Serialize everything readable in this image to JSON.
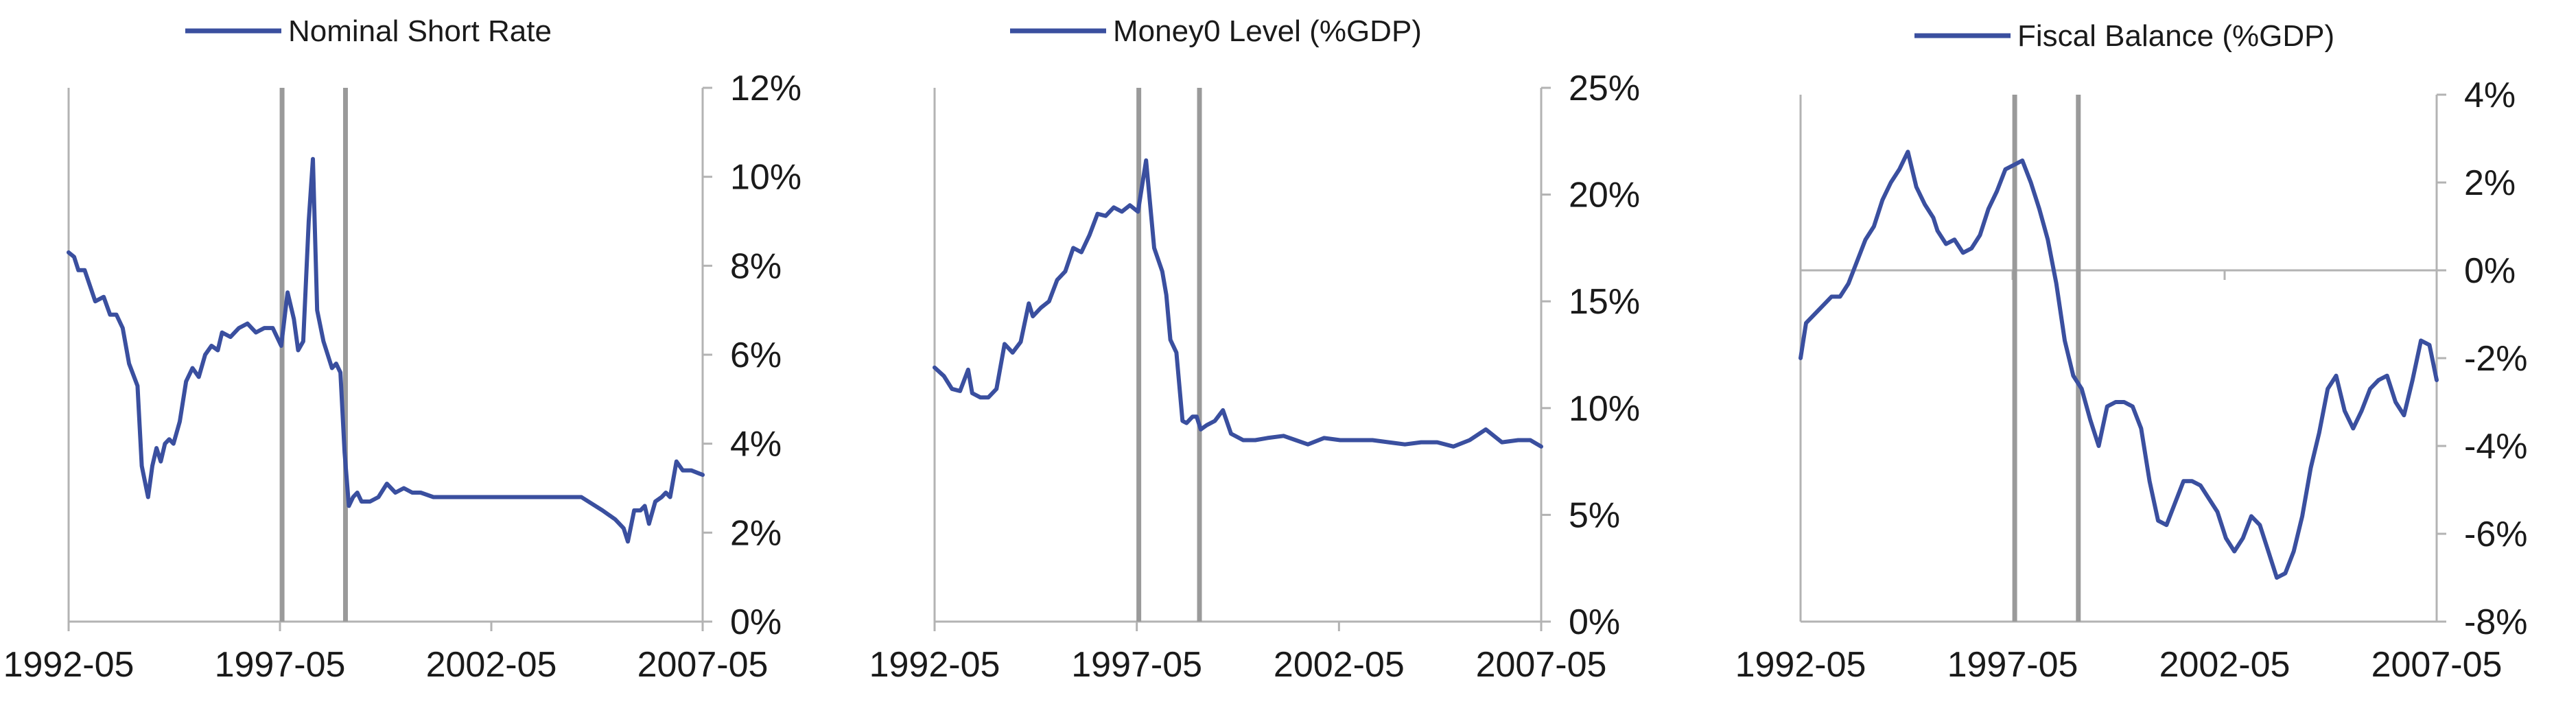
{
  "colors": {
    "series": "#3a4f9f",
    "axis": "#b3b3b3",
    "marker": "#9a9a9a",
    "text": "#1a1a1a"
  },
  "chart_data": [
    {
      "type": "line",
      "title": "",
      "legend": "Nominal Short Rate",
      "legend_placement": "top",
      "y_axis_side": "right",
      "xlim": [
        1992.37,
        2007.37
      ],
      "ylim": [
        0,
        12
      ],
      "yticks": [
        0,
        2,
        4,
        6,
        8,
        10,
        12
      ],
      "ytick_labels": [
        "0%",
        "2%",
        "4%",
        "6%",
        "8%",
        "10%",
        "12%"
      ],
      "xticks": [
        1992.37,
        1997.37,
        2002.37,
        2007.37
      ],
      "xtick_labels": [
        "1992-05",
        "1997-05",
        "2002-05",
        "2007-05"
      ],
      "grid": false,
      "vertical_markers": [
        1997.42,
        1998.92
      ],
      "series": [
        {
          "name": "Nominal Short Rate",
          "x": [
            1992.37,
            1992.5,
            1992.6,
            1992.75,
            1993.0,
            1993.2,
            1993.35,
            1993.5,
            1993.65,
            1993.8,
            1994.0,
            1994.1,
            1994.25,
            1994.35,
            1994.45,
            1994.55,
            1994.65,
            1994.75,
            1994.85,
            1995.0,
            1995.15,
            1995.3,
            1995.45,
            1995.6,
            1995.75,
            1995.9,
            1996.0,
            1996.2,
            1996.4,
            1996.6,
            1996.8,
            1997.0,
            1997.2,
            1997.4,
            1997.55,
            1997.7,
            1997.8,
            1997.92,
            1998.05,
            1998.15,
            1998.25,
            1998.4,
            1998.5,
            1998.6,
            1998.7,
            1998.8,
            1998.9,
            1999.0,
            1999.1,
            1999.2,
            1999.3,
            1999.5,
            1999.7,
            1999.9,
            2000.1,
            2000.3,
            2000.5,
            2000.7,
            2001.0,
            2001.3,
            2001.6,
            2002.0,
            2002.5,
            2003.0,
            2003.5,
            2004.0,
            2004.5,
            2005.0,
            2005.15,
            2005.3,
            2005.5,
            2005.6,
            2005.75,
            2005.9,
            2006.0,
            2006.1,
            2006.25,
            2006.4,
            2006.5,
            2006.6,
            2006.75,
            2006.9,
            2007.1,
            2007.37
          ],
          "values": [
            8.3,
            8.2,
            7.9,
            7.9,
            7.2,
            7.3,
            6.9,
            6.9,
            6.6,
            5.8,
            5.3,
            3.5,
            2.8,
            3.5,
            3.9,
            3.6,
            4.0,
            4.1,
            4.0,
            4.5,
            5.4,
            5.7,
            5.5,
            6.0,
            6.2,
            6.1,
            6.5,
            6.4,
            6.6,
            6.7,
            6.5,
            6.6,
            6.6,
            6.2,
            7.4,
            6.8,
            6.1,
            6.3,
            9.0,
            10.4,
            7.0,
            6.3,
            6.0,
            5.7,
            5.8,
            5.6,
            3.8,
            2.6,
            2.8,
            2.9,
            2.7,
            2.7,
            2.8,
            3.1,
            2.9,
            3.0,
            2.9,
            2.9,
            2.8,
            2.8,
            2.8,
            2.8,
            2.8,
            2.8,
            2.8,
            2.8,
            2.8,
            2.5,
            2.4,
            2.3,
            2.1,
            1.8,
            2.5,
            2.5,
            2.6,
            2.2,
            2.7,
            2.8,
            2.9,
            2.8,
            3.6,
            3.4,
            3.4,
            3.3
          ]
        }
      ]
    },
    {
      "type": "line",
      "title": "",
      "legend": "Money0 Level (%GDP)",
      "legend_placement": "top",
      "y_axis_side": "right",
      "xlim": [
        1992.37,
        2007.37
      ],
      "ylim": [
        0,
        25
      ],
      "yticks": [
        0,
        5,
        10,
        15,
        20,
        25
      ],
      "ytick_labels": [
        "0%",
        "5%",
        "10%",
        "15%",
        "20%",
        "25%"
      ],
      "xticks": [
        1992.37,
        1997.37,
        2002.37,
        2007.37
      ],
      "xtick_labels": [
        "1992-05",
        "1997-05",
        "2002-05",
        "2007-05"
      ],
      "grid": false,
      "vertical_markers": [
        1997.42,
        1998.92
      ],
      "series": [
        {
          "name": "Money0 Level (%GDP)",
          "x": [
            1992.37,
            1992.6,
            1992.8,
            1993.0,
            1993.2,
            1993.3,
            1993.5,
            1993.7,
            1993.9,
            1994.1,
            1994.3,
            1994.5,
            1994.7,
            1994.8,
            1995.0,
            1995.2,
            1995.4,
            1995.6,
            1995.8,
            1996.0,
            1996.2,
            1996.4,
            1996.6,
            1996.8,
            1997.0,
            1997.2,
            1997.4,
            1997.6,
            1997.8,
            1998.0,
            1998.1,
            1998.2,
            1998.35,
            1998.5,
            1998.6,
            1998.75,
            1998.85,
            1998.95,
            1999.1,
            1999.3,
            1999.5,
            1999.7,
            2000.0,
            2000.3,
            2000.6,
            2001.0,
            2001.3,
            2001.6,
            2002.0,
            2002.4,
            2002.8,
            2003.2,
            2003.6,
            2004.0,
            2004.4,
            2004.8,
            2005.2,
            2005.6,
            2006.0,
            2006.4,
            2006.8,
            2007.1,
            2007.37
          ],
          "values": [
            11.9,
            11.5,
            10.9,
            10.8,
            11.8,
            10.7,
            10.5,
            10.5,
            10.9,
            13.0,
            12.6,
            13.1,
            14.9,
            14.3,
            14.7,
            15.0,
            16.0,
            16.4,
            17.5,
            17.3,
            18.1,
            19.1,
            19.0,
            19.4,
            19.2,
            19.5,
            19.2,
            21.6,
            17.5,
            16.4,
            15.3,
            13.2,
            12.6,
            9.4,
            9.3,
            9.6,
            9.6,
            9.0,
            9.2,
            9.4,
            9.9,
            8.8,
            8.5,
            8.5,
            8.6,
            8.7,
            8.5,
            8.3,
            8.6,
            8.5,
            8.5,
            8.5,
            8.4,
            8.3,
            8.4,
            8.4,
            8.2,
            8.5,
            9.0,
            8.4,
            8.5,
            8.5,
            8.2
          ]
        }
      ]
    },
    {
      "type": "line",
      "title": "",
      "legend": "Fiscal Balance (%GDP)",
      "legend_placement": "top",
      "y_axis_side": "right",
      "xlim": [
        1992.37,
        2007.37
      ],
      "ylim": [
        -8,
        4
      ],
      "yticks": [
        -8,
        -6,
        -4,
        -2,
        0,
        2,
        4
      ],
      "ytick_labels": [
        "-8%",
        "-6%",
        "-4%",
        "-2%",
        "0%",
        "2%",
        "4%"
      ],
      "xticks": [
        1992.37,
        1997.37,
        2002.37,
        2007.37
      ],
      "xtick_labels": [
        "1992-05",
        "1997-05",
        "2002-05",
        "2007-05"
      ],
      "grid": false,
      "vertical_markers": [
        1997.42,
        1998.92
      ],
      "series": [
        {
          "name": "Fiscal Balance (%GDP)",
          "x": [
            1992.37,
            1992.5,
            1992.7,
            1992.9,
            1993.1,
            1993.3,
            1993.5,
            1993.7,
            1993.9,
            1994.1,
            1994.3,
            1994.5,
            1994.7,
            1994.9,
            1995.1,
            1995.3,
            1995.5,
            1995.6,
            1995.8,
            1996.0,
            1996.2,
            1996.4,
            1996.6,
            1996.8,
            1997.0,
            1997.2,
            1997.4,
            1997.6,
            1997.8,
            1998.0,
            1998.2,
            1998.4,
            1998.6,
            1998.8,
            1999.0,
            1999.2,
            1999.4,
            1999.6,
            1999.8,
            2000.0,
            2000.2,
            2000.4,
            2000.6,
            2000.8,
            2001.0,
            2001.2,
            2001.4,
            2001.6,
            2001.8,
            2002.0,
            2002.2,
            2002.4,
            2002.6,
            2002.8,
            2003.0,
            2003.2,
            2003.4,
            2003.6,
            2003.8,
            2004.0,
            2004.2,
            2004.4,
            2004.6,
            2004.8,
            2005.0,
            2005.2,
            2005.4,
            2005.6,
            2005.8,
            2006.0,
            2006.2,
            2006.4,
            2006.6,
            2006.8,
            2007.0,
            2007.2,
            2007.37
          ],
          "values": [
            -2.0,
            -1.2,
            -1.0,
            -0.8,
            -0.6,
            -0.6,
            -0.3,
            0.2,
            0.7,
            1.0,
            1.6,
            2.0,
            2.3,
            2.7,
            1.9,
            1.5,
            1.2,
            0.9,
            0.6,
            0.7,
            0.4,
            0.5,
            0.8,
            1.4,
            1.8,
            2.3,
            2.4,
            2.5,
            2.0,
            1.4,
            0.7,
            -0.3,
            -1.6,
            -2.4,
            -2.7,
            -3.4,
            -4.0,
            -3.1,
            -3.0,
            -3.0,
            -3.1,
            -3.6,
            -4.8,
            -5.7,
            -5.8,
            -5.3,
            -4.8,
            -4.8,
            -4.9,
            -5.2,
            -5.5,
            -6.1,
            -6.4,
            -6.1,
            -5.6,
            -5.8,
            -6.4,
            -7.0,
            -6.9,
            -6.4,
            -5.6,
            -4.5,
            -3.7,
            -2.7,
            -2.4,
            -3.2,
            -3.6,
            -3.2,
            -2.7,
            -2.5,
            -2.4,
            -3.0,
            -3.3,
            -2.5,
            -1.6,
            -1.7,
            -2.5
          ]
        }
      ]
    }
  ]
}
